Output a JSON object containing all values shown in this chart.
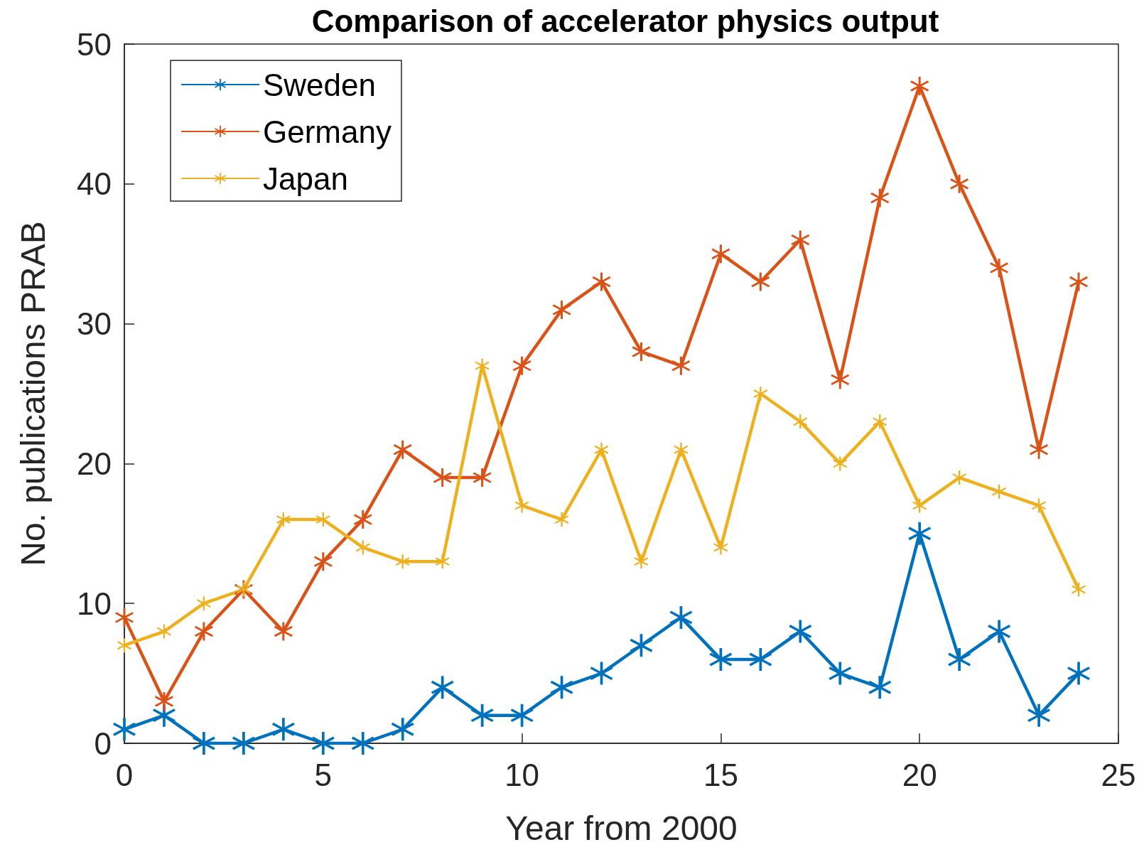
{
  "chart_data": {
    "type": "line",
    "title": "Comparison of accelerator physics output",
    "xlabel": "Year from 2000",
    "ylabel": "No. publications PRAB",
    "x": [
      0,
      1,
      2,
      3,
      4,
      5,
      6,
      7,
      8,
      9,
      10,
      11,
      12,
      13,
      14,
      15,
      16,
      17,
      18,
      19,
      20,
      21,
      22,
      23,
      24
    ],
    "series": [
      {
        "name": "Sweden",
        "color": "#0072bd",
        "values": [
          1,
          2,
          0,
          0,
          1,
          0,
          0,
          1,
          4,
          2,
          2,
          4,
          5,
          7,
          9,
          6,
          6,
          8,
          5,
          4,
          15,
          6,
          8,
          2,
          5
        ]
      },
      {
        "name": "Germany",
        "color": "#d95319",
        "values": [
          9,
          3,
          8,
          11,
          8,
          13,
          16,
          21,
          19,
          19,
          27,
          31,
          33,
          28,
          27,
          35,
          33,
          36,
          26,
          39,
          47,
          40,
          34,
          21,
          33
        ]
      },
      {
        "name": "Japan",
        "color": "#edb120",
        "values": [
          7,
          8,
          10,
          11,
          16,
          16,
          14,
          13,
          13,
          27,
          17,
          16,
          21,
          13,
          21,
          14,
          25,
          23,
          20,
          23,
          17,
          19,
          18,
          17,
          11
        ]
      }
    ],
    "xlim": [
      0,
      25
    ],
    "xticks": [
      0,
      5,
      10,
      15,
      20,
      25
    ],
    "ylim": [
      0,
      50
    ],
    "yticks": [
      0,
      10,
      20,
      30,
      40,
      50
    ],
    "grid": false,
    "legend": "top left",
    "marker": "star",
    "line_style": "solid"
  }
}
